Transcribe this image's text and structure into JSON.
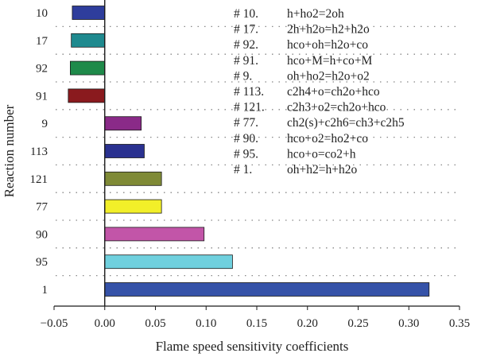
{
  "chart_data": {
    "type": "bar",
    "orientation": "horizontal",
    "xlabel": "Flame speed sensitivity coefficients",
    "ylabel": "Reaction number",
    "xlim": [
      -0.05,
      0.35
    ],
    "x_ticks": [
      "−0.05",
      "0.00",
      "0.05",
      "0.10",
      "0.15",
      "0.20",
      "0.25",
      "0.30",
      "0.35"
    ],
    "grid": "dotted horizontal",
    "categories": [
      "10",
      "17",
      "92",
      "91",
      "9",
      "113",
      "121",
      "77",
      "90",
      "95",
      "1"
    ],
    "values": [
      -0.032,
      -0.033,
      -0.034,
      -0.036,
      0.036,
      0.039,
      0.056,
      0.056,
      0.098,
      0.126,
      0.32
    ],
    "colors": [
      "#2e3d9c",
      "#1f8a8f",
      "#1f8a4a",
      "#8a1a1e",
      "#8a2a88",
      "#2a3190",
      "#7f8a36",
      "#f2ef29",
      "#c255a8",
      "#6fd0de",
      "#3552a8"
    ],
    "legend": [
      {
        "num": "# 10.",
        "reaction": "h+ho2=2oh"
      },
      {
        "num": "# 17.",
        "reaction": "2h+h2o=h2+h2o"
      },
      {
        "num": "# 92.",
        "reaction": "hco+oh=h2o+co"
      },
      {
        "num": "# 91.",
        "reaction": "hco+M=h+co+M"
      },
      {
        "num": "# 9.",
        "reaction": "oh+ho2=h2o+o2"
      },
      {
        "num": "# 113.",
        "reaction": "c2h4+o=ch2o+hco"
      },
      {
        "num": "# 121.",
        "reaction": "c2h3+o2=ch2o+hco"
      },
      {
        "num": "# 77.",
        "reaction": "ch2(s)+c2h6=ch3+c2h5"
      },
      {
        "num": "# 90.",
        "reaction": "hco+o2=ho2+co"
      },
      {
        "num": "# 95.",
        "reaction": "hco+o=co2+h"
      },
      {
        "num": "# 1.",
        "reaction": "oh+h2=h+h2o"
      }
    ]
  }
}
